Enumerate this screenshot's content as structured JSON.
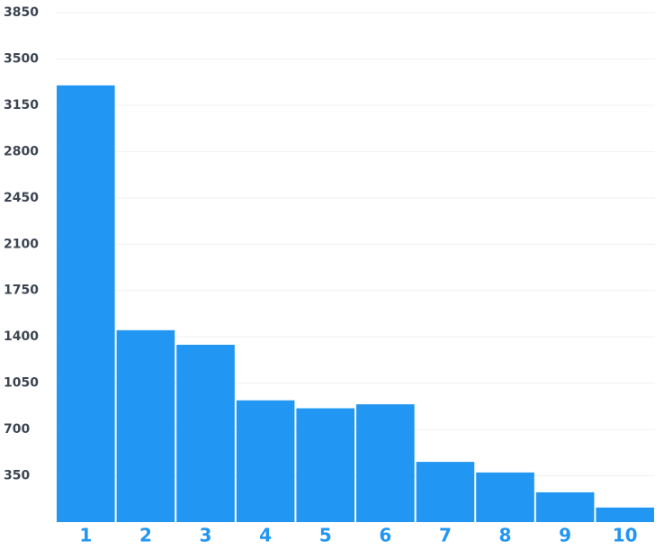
{
  "chart_data": {
    "type": "bar",
    "categories": [
      "1",
      "2",
      "3",
      "4",
      "5",
      "6",
      "7",
      "8",
      "9",
      "10"
    ],
    "values": [
      3300,
      1450,
      1340,
      920,
      860,
      890,
      455,
      375,
      225,
      110
    ],
    "color": "#2196f3",
    "ylim": [
      0,
      3850
    ],
    "yticks": [
      350,
      700,
      1050,
      1400,
      1750,
      2100,
      2450,
      2800,
      3150,
      3500,
      3850
    ],
    "grid": true
  }
}
